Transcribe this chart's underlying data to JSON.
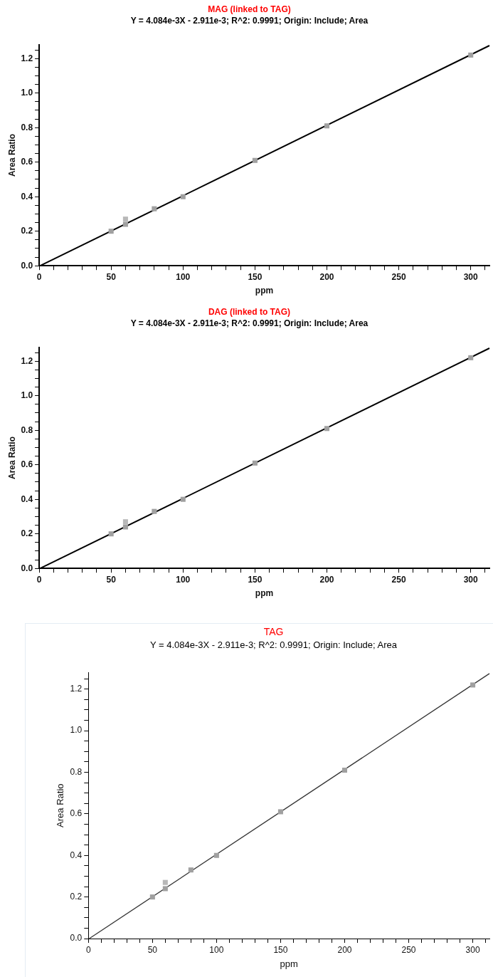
{
  "chart_data": [
    {
      "type": "scatter",
      "title": "MAG (linked to TAG)",
      "subtitle": "Y = 4.084e-3X - 2.911e-3; R^2: 0.9991; Origin: Include; Area",
      "xlabel": "ppm",
      "ylabel": "Area Ratio",
      "marker": "square",
      "grid": false,
      "legend": false,
      "series": [
        {
          "color": "#a0a0a0",
          "x": [
            50,
            60,
            80,
            100,
            150,
            200,
            300
          ],
          "values": [
            0.2,
            0.24,
            0.33,
            0.4,
            0.61,
            0.81,
            1.22
          ]
        },
        {
          "color": "#b8b8b8",
          "x": [
            60
          ],
          "values": [
            0.27
          ]
        },
        {
          "type": "line",
          "color": "#000000",
          "marker": "none",
          "x": [
            0.7,
            313
          ],
          "values": [
            0,
            1.275
          ]
        }
      ],
      "xlim": [
        0,
        313
      ],
      "ylim": [
        0,
        1.28
      ],
      "xticks": [
        0,
        {
          "value": 10,
          "label": null
        },
        {
          "value": 20,
          "label": null
        },
        {
          "value": 30,
          "label": null
        },
        {
          "value": 40,
          "label": null
        },
        50,
        {
          "value": 60,
          "label": null
        },
        {
          "value": 70,
          "label": null
        },
        {
          "value": 80,
          "label": null
        },
        {
          "value": 90,
          "label": null
        },
        100,
        {
          "value": 110,
          "label": null
        },
        {
          "value": 120,
          "label": null
        },
        {
          "value": 130,
          "label": null
        },
        {
          "value": 140,
          "label": null
        },
        150,
        {
          "value": 160,
          "label": null
        },
        {
          "value": 170,
          "label": null
        },
        {
          "value": 180,
          "label": null
        },
        {
          "value": 190,
          "label": null
        },
        200,
        {
          "value": 210,
          "label": null
        },
        {
          "value": 220,
          "label": null
        },
        {
          "value": 230,
          "label": null
        },
        {
          "value": 240,
          "label": null
        },
        250,
        {
          "value": 260,
          "label": null
        },
        {
          "value": 270,
          "label": null
        },
        {
          "value": 280,
          "label": null
        },
        {
          "value": 290,
          "label": null
        },
        300,
        {
          "value": 310,
          "label": null
        }
      ],
      "yticks": [
        {
          "value": 0,
          "label": "0.0"
        },
        {
          "value": 0.05,
          "label": null
        },
        {
          "value": 0.1,
          "label": null
        },
        {
          "value": 0.15,
          "label": null
        },
        {
          "value": 0.2,
          "label": "0.2"
        },
        {
          "value": 0.25,
          "label": null
        },
        {
          "value": 0.3,
          "label": null
        },
        {
          "value": 0.35,
          "label": null
        },
        {
          "value": 0.4,
          "label": "0.4"
        },
        {
          "value": 0.45,
          "label": null
        },
        {
          "value": 0.5,
          "label": null
        },
        {
          "value": 0.55,
          "label": null
        },
        {
          "value": 0.6,
          "label": "0.6"
        },
        {
          "value": 0.65,
          "label": null
        },
        {
          "value": 0.7,
          "label": null
        },
        {
          "value": 0.75,
          "label": null
        },
        {
          "value": 0.8,
          "label": "0.8"
        },
        {
          "value": 0.85,
          "label": null
        },
        {
          "value": 0.9,
          "label": null
        },
        {
          "value": 0.95,
          "label": null
        },
        {
          "value": 1.0,
          "label": "1.0"
        },
        {
          "value": 1.05,
          "label": null
        },
        {
          "value": 1.1,
          "label": null
        },
        {
          "value": 1.15,
          "label": null
        },
        {
          "value": 1.2,
          "label": "1.2"
        },
        {
          "value": 1.25,
          "label": null
        }
      ]
    },
    {
      "type": "scatter",
      "title": "DAG (linked to TAG)",
      "subtitle": "Y = 4.084e-3X - 2.911e-3; R^2: 0.9991; Origin: Include; Area",
      "xlabel": "ppm",
      "ylabel": "Area Ratio",
      "marker": "square",
      "grid": false,
      "legend": false,
      "series": [
        {
          "color": "#a0a0a0",
          "x": [
            50,
            60,
            80,
            100,
            150,
            200,
            300
          ],
          "values": [
            0.2,
            0.24,
            0.33,
            0.4,
            0.61,
            0.81,
            1.22
          ]
        },
        {
          "color": "#b8b8b8",
          "x": [
            60
          ],
          "values": [
            0.27
          ]
        },
        {
          "type": "line",
          "color": "#000000",
          "marker": "none",
          "x": [
            0.7,
            313
          ],
          "values": [
            0,
            1.275
          ]
        }
      ],
      "xlim": [
        0,
        313
      ],
      "ylim": [
        0,
        1.28
      ],
      "xticks": [
        0,
        {
          "value": 10,
          "label": null
        },
        {
          "value": 20,
          "label": null
        },
        {
          "value": 30,
          "label": null
        },
        {
          "value": 40,
          "label": null
        },
        50,
        {
          "value": 60,
          "label": null
        },
        {
          "value": 70,
          "label": null
        },
        {
          "value": 80,
          "label": null
        },
        {
          "value": 90,
          "label": null
        },
        100,
        {
          "value": 110,
          "label": null
        },
        {
          "value": 120,
          "label": null
        },
        {
          "value": 130,
          "label": null
        },
        {
          "value": 140,
          "label": null
        },
        150,
        {
          "value": 160,
          "label": null
        },
        {
          "value": 170,
          "label": null
        },
        {
          "value": 180,
          "label": null
        },
        {
          "value": 190,
          "label": null
        },
        200,
        {
          "value": 210,
          "label": null
        },
        {
          "value": 220,
          "label": null
        },
        {
          "value": 230,
          "label": null
        },
        {
          "value": 240,
          "label": null
        },
        250,
        {
          "value": 260,
          "label": null
        },
        {
          "value": 270,
          "label": null
        },
        {
          "value": 280,
          "label": null
        },
        {
          "value": 290,
          "label": null
        },
        300,
        {
          "value": 310,
          "label": null
        }
      ],
      "yticks": [
        {
          "value": 0,
          "label": "0.0"
        },
        {
          "value": 0.05,
          "label": null
        },
        {
          "value": 0.1,
          "label": null
        },
        {
          "value": 0.15,
          "label": null
        },
        {
          "value": 0.2,
          "label": "0.2"
        },
        {
          "value": 0.25,
          "label": null
        },
        {
          "value": 0.3,
          "label": null
        },
        {
          "value": 0.35,
          "label": null
        },
        {
          "value": 0.4,
          "label": "0.4"
        },
        {
          "value": 0.45,
          "label": null
        },
        {
          "value": 0.5,
          "label": null
        },
        {
          "value": 0.55,
          "label": null
        },
        {
          "value": 0.6,
          "label": "0.6"
        },
        {
          "value": 0.65,
          "label": null
        },
        {
          "value": 0.7,
          "label": null
        },
        {
          "value": 0.75,
          "label": null
        },
        {
          "value": 0.8,
          "label": "0.8"
        },
        {
          "value": 0.85,
          "label": null
        },
        {
          "value": 0.9,
          "label": null
        },
        {
          "value": 0.95,
          "label": null
        },
        {
          "value": 1.0,
          "label": "1.0"
        },
        {
          "value": 1.05,
          "label": null
        },
        {
          "value": 1.1,
          "label": null
        },
        {
          "value": 1.15,
          "label": null
        },
        {
          "value": 1.2,
          "label": "1.2"
        },
        {
          "value": 1.25,
          "label": null
        }
      ]
    },
    {
      "type": "scatter",
      "title": "TAG",
      "subtitle": "Y = 4.084e-3X - 2.911e-3; R^2: 0.9991; Origin: Include; Area",
      "xlabel": "ppm",
      "ylabel": "Area Ratio",
      "marker": "square",
      "grid": false,
      "legend": false,
      "series": [
        {
          "color": "#a0a0a0",
          "x": [
            50,
            60,
            80,
            100,
            150,
            200,
            300
          ],
          "values": [
            0.2,
            0.24,
            0.33,
            0.4,
            0.61,
            0.81,
            1.22
          ]
        },
        {
          "color": "#b8b8b8",
          "x": [
            60
          ],
          "values": [
            0.27
          ]
        },
        {
          "type": "line",
          "color": "#333333",
          "marker": "none",
          "x": [
            0.7,
            313
          ],
          "values": [
            0,
            1.275
          ]
        }
      ],
      "xlim": [
        0,
        313
      ],
      "ylim": [
        0,
        1.28
      ],
      "xticks": [
        0,
        {
          "value": 10,
          "label": null
        },
        {
          "value": 20,
          "label": null
        },
        {
          "value": 30,
          "label": null
        },
        {
          "value": 40,
          "label": null
        },
        50,
        {
          "value": 60,
          "label": null
        },
        {
          "value": 70,
          "label": null
        },
        {
          "value": 80,
          "label": null
        },
        {
          "value": 90,
          "label": null
        },
        100,
        {
          "value": 110,
          "label": null
        },
        {
          "value": 120,
          "label": null
        },
        {
          "value": 130,
          "label": null
        },
        {
          "value": 140,
          "label": null
        },
        150,
        {
          "value": 160,
          "label": null
        },
        {
          "value": 170,
          "label": null
        },
        {
          "value": 180,
          "label": null
        },
        {
          "value": 190,
          "label": null
        },
        200,
        {
          "value": 210,
          "label": null
        },
        {
          "value": 220,
          "label": null
        },
        {
          "value": 230,
          "label": null
        },
        {
          "value": 240,
          "label": null
        },
        250,
        {
          "value": 260,
          "label": null
        },
        {
          "value": 270,
          "label": null
        },
        {
          "value": 280,
          "label": null
        },
        {
          "value": 290,
          "label": null
        },
        300,
        {
          "value": 310,
          "label": null
        }
      ],
      "yticks": [
        {
          "value": 0,
          "label": "0.0"
        },
        {
          "value": 0.05,
          "label": null
        },
        {
          "value": 0.1,
          "label": null
        },
        {
          "value": 0.15,
          "label": null
        },
        {
          "value": 0.2,
          "label": "0.2"
        },
        {
          "value": 0.25,
          "label": null
        },
        {
          "value": 0.3,
          "label": null
        },
        {
          "value": 0.35,
          "label": null
        },
        {
          "value": 0.4,
          "label": "0.4"
        },
        {
          "value": 0.45,
          "label": null
        },
        {
          "value": 0.5,
          "label": null
        },
        {
          "value": 0.55,
          "label": null
        },
        {
          "value": 0.6,
          "label": "0.6"
        },
        {
          "value": 0.65,
          "label": null
        },
        {
          "value": 0.7,
          "label": null
        },
        {
          "value": 0.75,
          "label": null
        },
        {
          "value": 0.8,
          "label": "0.8"
        },
        {
          "value": 0.85,
          "label": null
        },
        {
          "value": 0.9,
          "label": null
        },
        {
          "value": 0.95,
          "label": null
        },
        {
          "value": 1.0,
          "label": "1.0"
        },
        {
          "value": 1.05,
          "label": null
        },
        {
          "value": 1.1,
          "label": null
        },
        {
          "value": 1.15,
          "label": null
        },
        {
          "value": 1.2,
          "label": "1.2"
        },
        {
          "value": 1.25,
          "label": null
        }
      ]
    }
  ]
}
